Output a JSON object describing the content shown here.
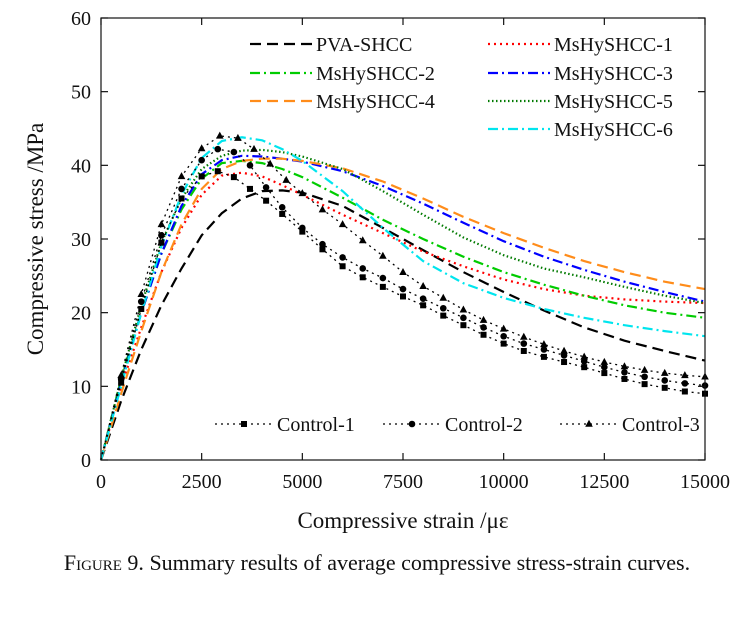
{
  "caption": {
    "label": "Figure 9.",
    "text": "Summary results of average compressive stress-strain curves."
  },
  "chart_data": {
    "type": "line",
    "title": "",
    "xlabel": "Compressive strain /με",
    "ylabel": "Compressive stress /MPa",
    "xlim": [
      0,
      15000
    ],
    "ylim": [
      0,
      60
    ],
    "xticks": [
      0,
      2500,
      5000,
      7500,
      10000,
      12500,
      15000
    ],
    "yticks": [
      0,
      10,
      20,
      30,
      40,
      50,
      60
    ],
    "grid": false,
    "legend_position": "top-right",
    "series": [
      {
        "name": "PVA-SHCC",
        "color": "#000000",
        "dash": "dash",
        "x": [
          0,
          500,
          1000,
          1500,
          2000,
          2500,
          3000,
          3500,
          4000,
          4500,
          5000,
          6000,
          7000,
          8000,
          9000,
          10000,
          11000,
          12000,
          13000,
          14000,
          15000
        ],
        "y": [
          0,
          8,
          15,
          21,
          26,
          30.5,
          33.5,
          35.5,
          36.5,
          36.6,
          36.3,
          34.5,
          31.5,
          28.5,
          25.5,
          22.8,
          20.3,
          18,
          16.2,
          14.8,
          13.5
        ]
      },
      {
        "name": "MsHySHCC-1",
        "color": "#ff0000",
        "dash": "dot",
        "x": [
          0,
          500,
          1000,
          1500,
          2000,
          2500,
          3000,
          3500,
          4000,
          4500,
          5000,
          6000,
          7000,
          8000,
          9000,
          10000,
          11000,
          12000,
          13000,
          14000,
          15000
        ],
        "y": [
          0,
          10,
          18,
          25.5,
          31.5,
          36,
          38.6,
          39,
          38.5,
          37.3,
          36,
          33.3,
          30.8,
          28.3,
          26.3,
          24.5,
          23.2,
          22.3,
          21.8,
          21.5,
          21.3
        ]
      },
      {
        "name": "MsHySHCC-2",
        "color": "#00cc00",
        "dash": "dashdot",
        "x": [
          0,
          500,
          1000,
          1500,
          2000,
          2500,
          3000,
          3500,
          4000,
          4500,
          5000,
          6000,
          7000,
          8000,
          9000,
          10000,
          11000,
          12000,
          13000,
          14000,
          15000
        ],
        "y": [
          0,
          11,
          20,
          28,
          34,
          38.2,
          40.3,
          40.6,
          40.3,
          39.5,
          38.4,
          35.6,
          32.6,
          30,
          27.6,
          25.5,
          23.8,
          22.3,
          21,
          20,
          19.3
        ]
      },
      {
        "name": "MsHySHCC-3",
        "color": "#0000ff",
        "dash": "dashdot",
        "x": [
          0,
          500,
          1000,
          1500,
          2000,
          2500,
          3000,
          3500,
          4000,
          4500,
          5000,
          6000,
          7000,
          8000,
          9000,
          10000,
          11000,
          12000,
          13000,
          14000,
          15000
        ],
        "y": [
          0,
          10.5,
          20,
          28,
          34.5,
          38.8,
          40.7,
          41.3,
          41.2,
          40.9,
          40.5,
          39.2,
          37.2,
          34.8,
          32.2,
          29.7,
          27.6,
          25.8,
          24.2,
          22.8,
          21.5
        ]
      },
      {
        "name": "MsHySHCC-4",
        "color": "#ff8c1a",
        "dash": "dash",
        "x": [
          0,
          500,
          1000,
          1500,
          2000,
          2500,
          3000,
          3500,
          4000,
          4500,
          5000,
          6000,
          7000,
          8000,
          9000,
          10000,
          11000,
          12000,
          13000,
          14000,
          15000
        ],
        "y": [
          0,
          9,
          17.5,
          25.5,
          32,
          36.8,
          39.5,
          40.6,
          40.9,
          40.9,
          40.6,
          39.6,
          37.8,
          35.5,
          33,
          30.8,
          28.8,
          27,
          25.5,
          24.2,
          23.2
        ]
      },
      {
        "name": "MsHySHCC-5",
        "color": "#007a00",
        "dash": "densedot",
        "x": [
          0,
          500,
          1000,
          1500,
          2000,
          2500,
          3000,
          3500,
          4000,
          4500,
          5000,
          6000,
          7000,
          8000,
          9000,
          10000,
          11000,
          12000,
          13000,
          14000,
          15000
        ],
        "y": [
          0,
          11,
          21,
          29.5,
          35.5,
          39.5,
          41.3,
          42,
          42.1,
          41.8,
          41.2,
          39.5,
          36.5,
          33.3,
          30.2,
          27.8,
          26,
          24.8,
          23.5,
          22.3,
          21.3
        ]
      },
      {
        "name": "MsHySHCC-6",
        "color": "#00e5ee",
        "dash": "dashdot",
        "x": [
          0,
          500,
          1000,
          1500,
          2000,
          2500,
          3000,
          3500,
          4000,
          4500,
          5000,
          6000,
          7000,
          8000,
          9000,
          10000,
          11000,
          12000,
          13000,
          14000,
          15000
        ],
        "y": [
          0,
          10,
          20,
          29,
          36,
          41,
          43.3,
          43.8,
          43.4,
          42.2,
          40.6,
          36.5,
          31.5,
          27,
          24,
          22,
          20.5,
          19.3,
          18.3,
          17.5,
          16.8
        ]
      },
      {
        "name": "Control-1",
        "color": "#000000",
        "dash": "dot",
        "marker": "square",
        "x": [
          0,
          500,
          1000,
          1500,
          2000,
          2500,
          2900,
          3300,
          3700,
          4100,
          4500,
          5000,
          5500,
          6000,
          6500,
          7000,
          7500,
          8000,
          8500,
          9000,
          9500,
          10000,
          10500,
          11000,
          11500,
          12000,
          12500,
          13000,
          13500,
          14000,
          14500,
          15000
        ],
        "y": [
          0,
          10.5,
          20.5,
          29.5,
          35.5,
          38.5,
          39.2,
          38.4,
          36.8,
          35.2,
          33.4,
          31,
          28.6,
          26.3,
          24.8,
          23.5,
          22.2,
          21,
          19.6,
          18.3,
          17,
          15.8,
          14.8,
          14,
          13.3,
          12.6,
          11.8,
          11,
          10.3,
          9.8,
          9.3,
          9
        ]
      },
      {
        "name": "Control-2",
        "color": "#000000",
        "dash": "dot",
        "marker": "circle",
        "x": [
          0,
          500,
          1000,
          1500,
          2000,
          2500,
          2900,
          3300,
          3700,
          4100,
          4500,
          5000,
          5500,
          6000,
          6500,
          7000,
          7500,
          8000,
          8500,
          9000,
          9500,
          10000,
          10500,
          11000,
          11500,
          12000,
          12500,
          13000,
          13500,
          14000,
          14500,
          15000
        ],
        "y": [
          0,
          11,
          21.5,
          30.5,
          36.8,
          40.7,
          42.2,
          41.8,
          40,
          37,
          34.3,
          31.5,
          29.3,
          27.5,
          26,
          24.7,
          23.2,
          21.9,
          20.6,
          19.3,
          18,
          16.8,
          15.8,
          15,
          14.2,
          13.4,
          12.6,
          11.9,
          11.3,
          10.8,
          10.4,
          10.1
        ]
      },
      {
        "name": "Control-3",
        "color": "#000000",
        "dash": "dot",
        "marker": "triangle",
        "x": [
          0,
          500,
          1000,
          1500,
          2000,
          2500,
          2950,
          3400,
          3800,
          4200,
          4600,
          5000,
          5500,
          6000,
          6500,
          7000,
          7500,
          8000,
          8500,
          9000,
          9500,
          10000,
          10500,
          11000,
          11500,
          12000,
          12500,
          13000,
          13500,
          14000,
          14500,
          15000
        ],
        "y": [
          0,
          11.5,
          22.5,
          32,
          38.5,
          42.3,
          44,
          43.7,
          42.2,
          40.2,
          38,
          36.2,
          34,
          32,
          29.8,
          27.7,
          25.5,
          23.6,
          22,
          20.4,
          19,
          17.8,
          16.7,
          15.7,
          14.8,
          14,
          13.3,
          12.7,
          12.2,
          11.8,
          11.5,
          11.3
        ]
      }
    ]
  }
}
